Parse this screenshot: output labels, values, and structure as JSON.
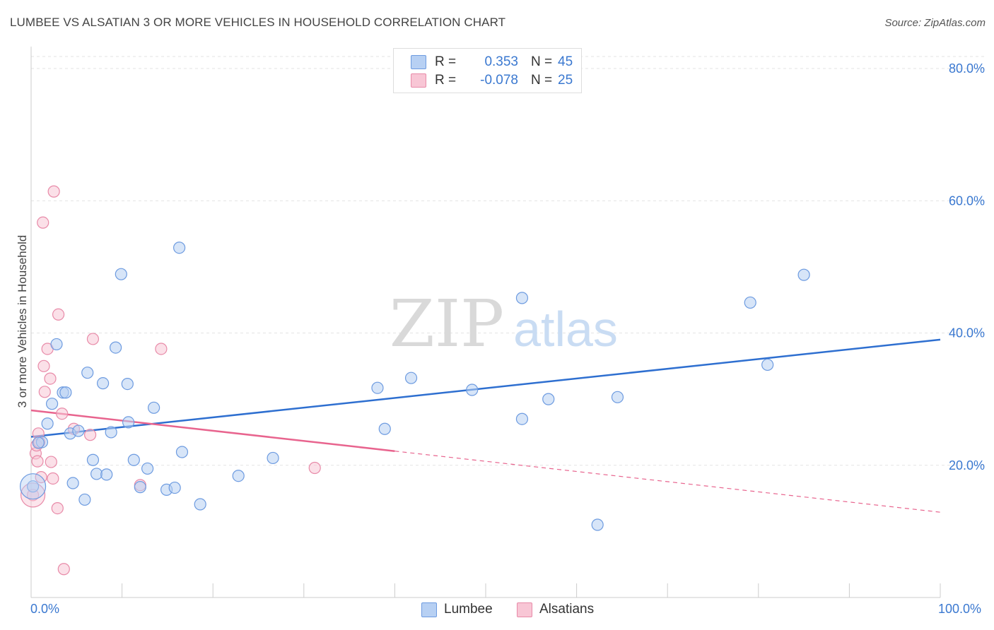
{
  "title": "LUMBEE VS ALSATIAN 3 OR MORE VEHICLES IN HOUSEHOLD CORRELATION CHART",
  "source": "Source: ZipAtlas.com",
  "watermark": {
    "zip": "ZIP",
    "atlas": "atlas"
  },
  "legend": {
    "lumbee": {
      "r_label": "R =",
      "r_value": "0.353",
      "n_label": "N =",
      "n_value": "45"
    },
    "alsatians": {
      "r_label": "R =",
      "r_value": "-0.078",
      "n_label": "N =",
      "n_value": "25"
    }
  },
  "bottom_legend": {
    "lumbee": "Lumbee",
    "alsatians": "Alsatians"
  },
  "colors": {
    "lumbee_fill": "#b7d0f3",
    "lumbee_stroke": "#6d9be0",
    "lumbee_line": "#2e6fd0",
    "alsatian_fill": "#f8c6d5",
    "alsatian_stroke": "#e88aa8",
    "alsatian_line": "#e8648e",
    "axis_text": "#3a78d0",
    "grid": "#e3e3e3"
  },
  "chart_data": {
    "type": "scatter",
    "title": "LUMBEE VS ALSATIAN 3 OR MORE VEHICLES IN HOUSEHOLD CORRELATION CHART",
    "xlabel": "",
    "ylabel": "3 or more Vehicles in Household",
    "xlim": [
      0,
      100
    ],
    "ylim": [
      0,
      84
    ],
    "x_tick_labels": [
      "0.0%",
      "100.0%"
    ],
    "y_ticks": [
      20,
      40,
      60,
      80
    ],
    "y_tick_labels": [
      "20.0%",
      "40.0%",
      "60.0%",
      "80.0%"
    ],
    "grid": "horizontal dashed",
    "series": [
      {
        "name": "Lumbee",
        "points": [
          [
            0.2,
            16.8
          ],
          [
            1.2,
            23.5
          ],
          [
            1.8,
            26.3
          ],
          [
            2.3,
            29.3
          ],
          [
            2.8,
            38.3
          ],
          [
            3.5,
            31.0
          ],
          [
            3.8,
            31.0
          ],
          [
            4.3,
            24.8
          ],
          [
            4.6,
            17.3
          ],
          [
            5.2,
            25.2
          ],
          [
            5.9,
            14.8
          ],
          [
            6.2,
            34.0
          ],
          [
            6.8,
            20.8
          ],
          [
            7.2,
            18.7
          ],
          [
            7.9,
            32.4
          ],
          [
            8.3,
            18.6
          ],
          [
            8.8,
            25.0
          ],
          [
            9.3,
            37.8
          ],
          [
            9.9,
            48.9
          ],
          [
            10.6,
            32.3
          ],
          [
            10.7,
            26.5
          ],
          [
            11.3,
            20.8
          ],
          [
            12.0,
            16.7
          ],
          [
            12.8,
            19.5
          ],
          [
            13.5,
            28.7
          ],
          [
            14.9,
            16.3
          ],
          [
            15.8,
            16.6
          ],
          [
            16.3,
            52.9
          ],
          [
            16.6,
            22.0
          ],
          [
            18.6,
            14.1
          ],
          [
            22.8,
            18.4
          ],
          [
            26.6,
            21.1
          ],
          [
            38.1,
            31.7
          ],
          [
            38.9,
            25.5
          ],
          [
            41.8,
            33.2
          ],
          [
            48.5,
            31.4
          ],
          [
            54.0,
            45.3
          ],
          [
            54.0,
            27.0
          ],
          [
            56.9,
            30.0
          ],
          [
            62.3,
            11.0
          ],
          [
            64.5,
            30.3
          ],
          [
            79.1,
            44.6
          ],
          [
            81.0,
            35.2
          ],
          [
            85.0,
            48.8
          ],
          [
            0.8,
            23.4
          ]
        ],
        "trend": {
          "x": [
            0,
            100
          ],
          "y": [
            24.3,
            39.0
          ]
        }
      },
      {
        "name": "Alsatians",
        "points": [
          [
            0.2,
            15.5
          ],
          [
            0.5,
            21.8
          ],
          [
            0.6,
            23.0
          ],
          [
            0.7,
            20.6
          ],
          [
            0.8,
            24.8
          ],
          [
            0.9,
            23.5
          ],
          [
            1.1,
            18.2
          ],
          [
            1.3,
            56.7
          ],
          [
            1.4,
            35.0
          ],
          [
            1.5,
            31.1
          ],
          [
            1.8,
            37.6
          ],
          [
            2.1,
            33.1
          ],
          [
            2.2,
            20.5
          ],
          [
            2.4,
            18.0
          ],
          [
            2.5,
            61.4
          ],
          [
            2.9,
            13.5
          ],
          [
            3.0,
            42.8
          ],
          [
            3.4,
            27.8
          ],
          [
            3.6,
            4.3
          ],
          [
            4.7,
            25.5
          ],
          [
            6.5,
            24.6
          ],
          [
            6.8,
            39.1
          ],
          [
            12.0,
            17.0
          ],
          [
            14.3,
            37.6
          ],
          [
            31.2,
            19.6
          ]
        ],
        "trend": {
          "x": [
            0,
            100
          ],
          "y": [
            28.3,
            12.9
          ],
          "solid_until_x": 40
        }
      }
    ]
  }
}
